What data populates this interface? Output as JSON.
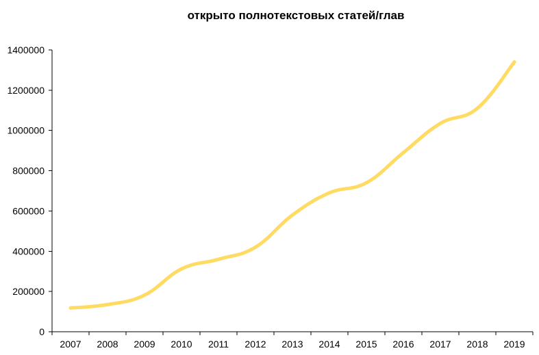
{
  "chart_data": {
    "type": "line",
    "title": "открыто полнотекстовых статей/глав",
    "xlabel": "",
    "ylabel": "",
    "categories": [
      "2007",
      "2008",
      "2009",
      "2010",
      "2011",
      "2012",
      "2013",
      "2014",
      "2015",
      "2016",
      "2017",
      "2018",
      "2019"
    ],
    "ylim": [
      0,
      1400000
    ],
    "y_ticks": [
      "0",
      "200000",
      "400000",
      "600000",
      "800000",
      "1000000",
      "1200000",
      "1400000"
    ],
    "grid": false,
    "legend": "none",
    "series": [
      {
        "values": [
          118000,
          135000,
          182000,
          312000,
          360000,
          420000,
          580000,
          690000,
          740000,
          890000,
          1035000,
          1110000,
          1340000
        ],
        "color": "#FFDB63"
      }
    ]
  }
}
